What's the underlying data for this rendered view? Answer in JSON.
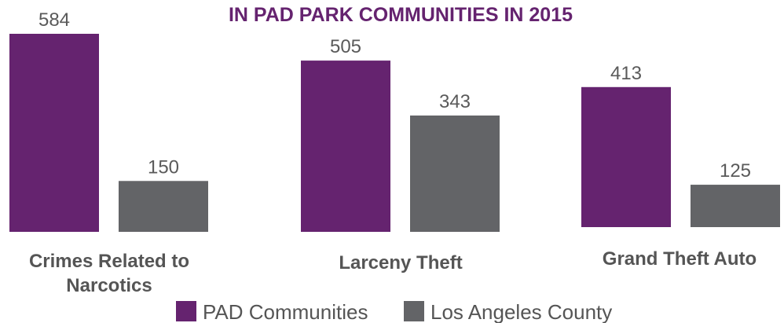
{
  "chart_data": {
    "type": "bar",
    "title": "IN PAD PARK COMMUNITIES IN 2015",
    "categories": [
      [
        "Crimes Related to",
        "Narcotics"
      ],
      [
        "Larceny Theft"
      ],
      [
        "Grand Theft Auto"
      ]
    ],
    "series": [
      {
        "name": "PAD Communities",
        "values": [
          584,
          505,
          413
        ],
        "color": "#65236f"
      },
      {
        "name": "Los Angeles County",
        "values": [
          150,
          343,
          125
        ],
        "color": "#636467"
      }
    ],
    "xlabel": "",
    "ylabel": "",
    "ylim": [
      0,
      584
    ],
    "grid": false,
    "legend": "bottom-center"
  }
}
